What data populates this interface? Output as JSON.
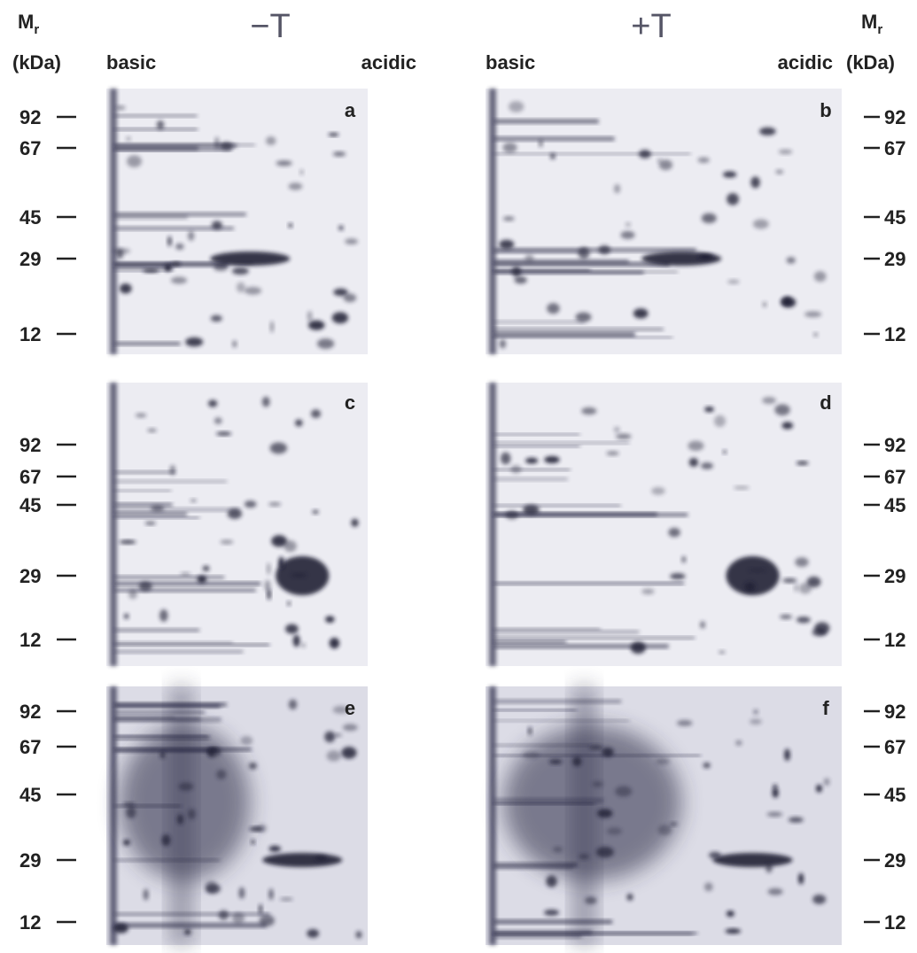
{
  "header": {
    "left_axis": {
      "symbol": "M",
      "subscript": "r",
      "unit": "(kDa)"
    },
    "right_axis": {
      "symbol": "M",
      "subscript": "r",
      "unit": "(kDa)"
    },
    "columns": [
      {
        "label": "−T",
        "basic": "basic",
        "acidic": "acidic"
      },
      {
        "label": "+T",
        "basic": "basic",
        "acidic": "acidic"
      }
    ]
  },
  "rows": [
    {
      "markers": [
        "92",
        "67",
        "45",
        "29",
        "12"
      ],
      "panels": [
        "a",
        "b"
      ]
    },
    {
      "markers": [
        "92",
        "67",
        "45",
        "29",
        "12"
      ],
      "panels": [
        "c",
        "d"
      ]
    },
    {
      "markers": [
        "92",
        "67",
        "45",
        "29",
        "12"
      ],
      "panels": [
        "e",
        "f"
      ]
    }
  ]
}
